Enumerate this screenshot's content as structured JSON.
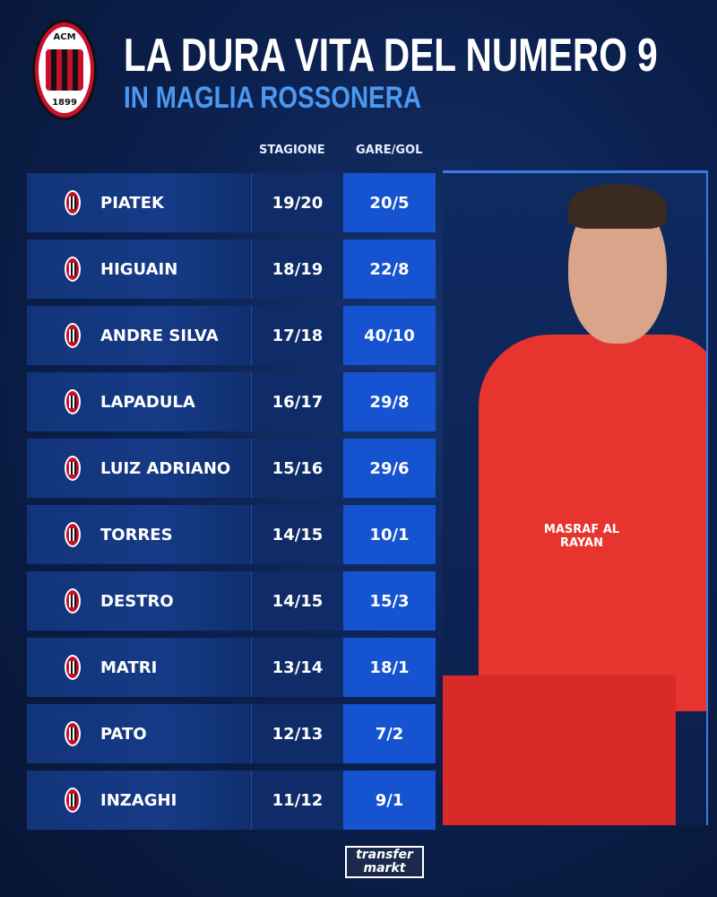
{
  "header": {
    "title": "LA DURA VITA DEL NUMERO 9",
    "subtitle": "IN MAGLIA ROSSONERA",
    "logo_text": "ACM",
    "logo_year": "1899"
  },
  "columns": {
    "season": "STAGIONE",
    "games_goals": "GARE/GOL"
  },
  "rows": [
    {
      "name": "PIATEK",
      "season": "19/20",
      "games_goals": "20/5"
    },
    {
      "name": "HIGUAIN",
      "season": "18/19",
      "games_goals": "22/8"
    },
    {
      "name": "ANDRE SILVA",
      "season": "17/18",
      "games_goals": "40/10"
    },
    {
      "name": "LAPADULA",
      "season": "16/17",
      "games_goals": "29/8"
    },
    {
      "name": "LUIZ ADRIANO",
      "season": "15/16",
      "games_goals": "29/6"
    },
    {
      "name": "TORRES",
      "season": "14/15",
      "games_goals": "10/1"
    },
    {
      "name": "DESTRO",
      "season": "14/15",
      "games_goals": "15/3"
    },
    {
      "name": "MATRI",
      "season": "13/14",
      "games_goals": "18/1"
    },
    {
      "name": "PATO",
      "season": "12/13",
      "games_goals": "7/2"
    },
    {
      "name": "INZAGHI",
      "season": "11/12",
      "games_goals": "9/1"
    }
  ],
  "photo": {
    "sponsor": "MASRAF AL RAYAN"
  },
  "footer": {
    "brand_line1": "transfer",
    "brand_line2": "markt"
  },
  "colors": {
    "accent": "#4b98f0",
    "highlight_cell": "#1553d0",
    "background": "#0c2150",
    "milan_red": "#c8102e"
  }
}
